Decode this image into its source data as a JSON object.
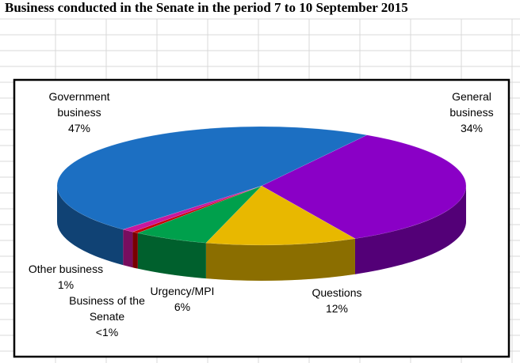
{
  "chart_data": {
    "type": "pie3d",
    "title": "Business conducted in the Senate in the period 7 to 10 September 2015",
    "categories": [
      "General business",
      "Questions",
      "Urgency/MPI",
      "Business of the Senate",
      "Other business",
      "Government business"
    ],
    "values": [
      34,
      12,
      6,
      0.5,
      1,
      47
    ],
    "value_labels": [
      "34%",
      "12%",
      "6%",
      "<1%",
      "1%",
      "47%"
    ],
    "colors": [
      "#8a00c6",
      "#e8b800",
      "#00a04c",
      "#c80000",
      "#c8189e",
      "#1c6fc2"
    ]
  }
}
